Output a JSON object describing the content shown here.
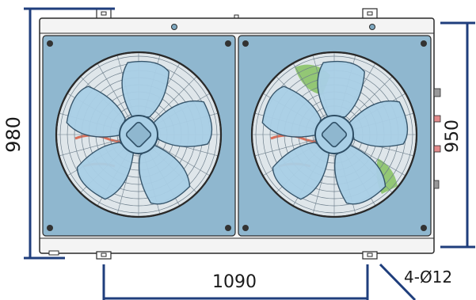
{
  "dimensions": {
    "height_outer": "980",
    "height_inner": "950",
    "mount_spacing": "1090",
    "holes": "4-Ø12"
  },
  "colors": {
    "dimension_line": "#1f3e7c",
    "panel": "#8fb7cf",
    "casing": "#f4f4f4",
    "outline": "#2a2a2a",
    "blade": "#a9cfe6",
    "blade_edge": "#2f4f66",
    "grille": "#6e7f8c",
    "wiring_green": "#7fbf57",
    "wiring_red": "#d8705a"
  },
  "fans": [
    {
      "id": "fan-left"
    },
    {
      "id": "fan-right"
    }
  ]
}
